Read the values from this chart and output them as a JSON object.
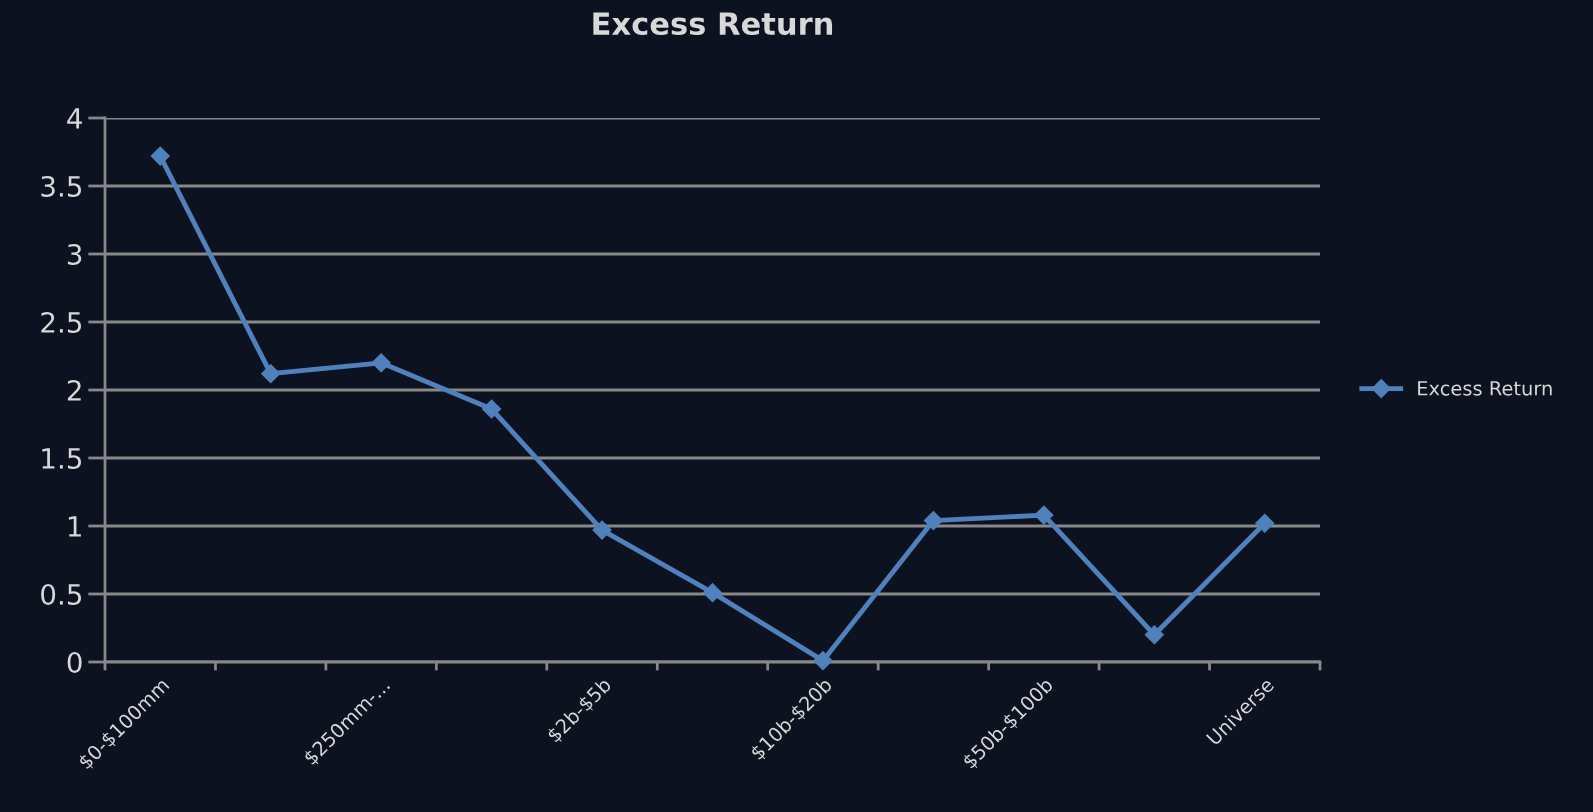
{
  "chart_data": {
    "type": "line",
    "title": "Excess Return",
    "categories": [
      "$0-$100mm",
      null,
      "$250mm-...",
      null,
      "$2b-$5b",
      null,
      "$10b-$20b",
      null,
      "$50b-$100b",
      null,
      "Universe"
    ],
    "series": [
      {
        "name": "Excess Return",
        "color": "#4f81bd",
        "values": [
          3.72,
          2.12,
          2.2,
          1.86,
          0.97,
          0.51,
          0.01,
          1.04,
          1.08,
          0.2,
          1.02
        ]
      }
    ],
    "ylim": [
      0,
      4
    ],
    "yticks": [
      0,
      0.5,
      1,
      1.5,
      2,
      2.5,
      3,
      3.5,
      4
    ],
    "grid": "y",
    "legend": "right",
    "marker": "diamond",
    "line_style": "solid"
  }
}
